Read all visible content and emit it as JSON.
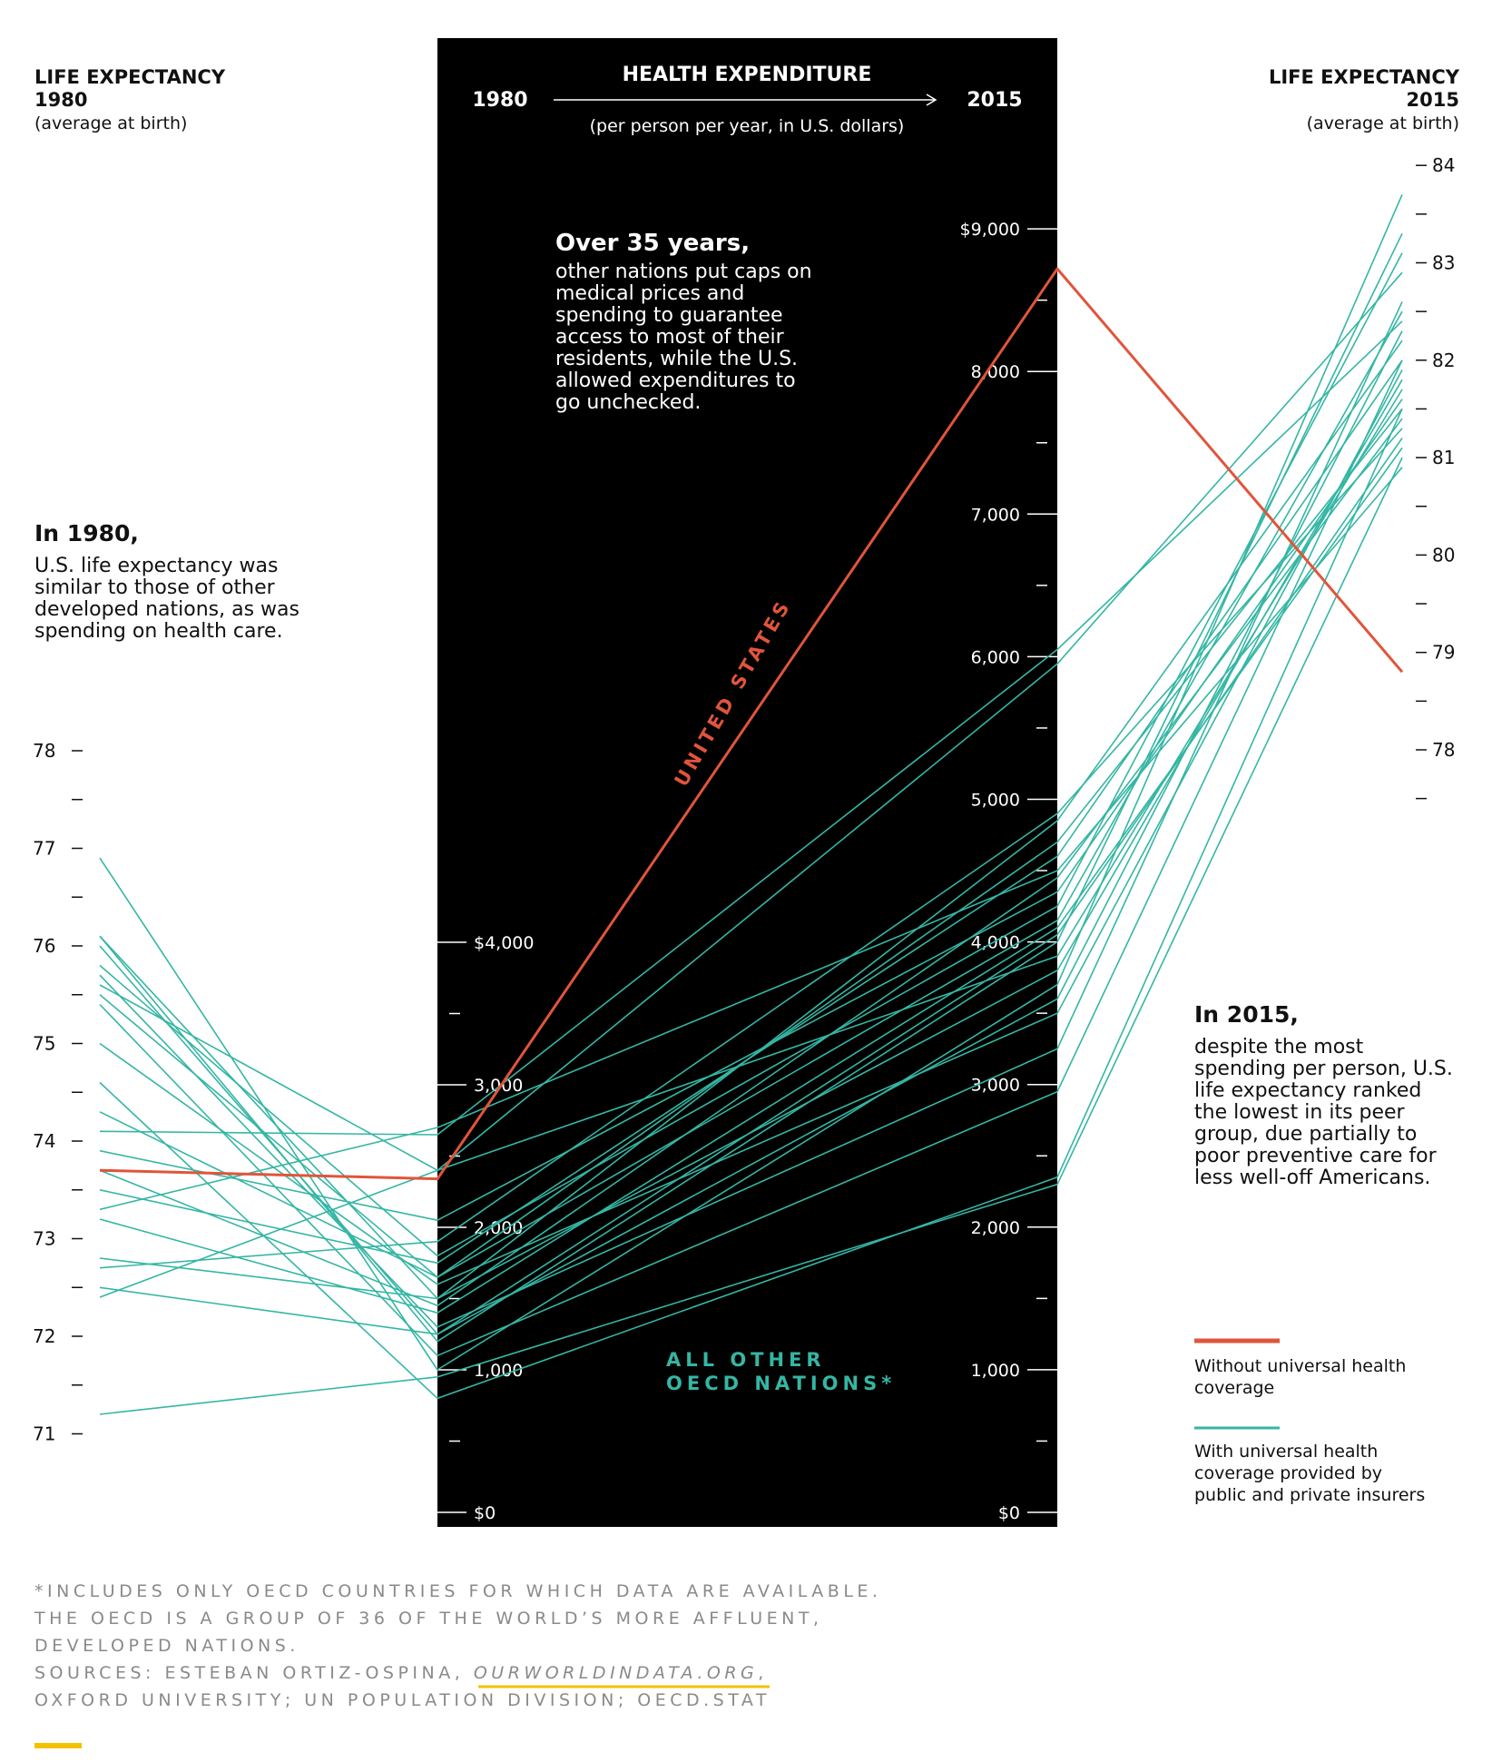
{
  "left_header": {
    "title_line1": "LIFE EXPECTANCY",
    "title_line2": "1980",
    "subtitle": "(average at birth)"
  },
  "right_header": {
    "title_line1": "LIFE EXPECTANCY",
    "title_line2": "2015",
    "subtitle": "(average at birth)"
  },
  "middle_header": {
    "year_start": "1980",
    "title": "HEALTH EXPENDITURE",
    "year_end": "2015",
    "subtitle": "(per person per year, in U.S. dollars)"
  },
  "annotation_35": {
    "lead": "Over 35 years,",
    "lines": [
      "other nations put caps on",
      "medical prices and",
      "spending to guarantee",
      "access to most of their",
      "residents, while the U.S.",
      "allowed expenditures to",
      "go unchecked."
    ]
  },
  "annotation_1980": {
    "lead": "In 1980,",
    "lines": [
      "U.S. life expectancy was",
      "similar to those of other",
      "developed nations, as was",
      "spending on health care."
    ]
  },
  "annotation_2015": {
    "lead": "In 2015,",
    "lines": [
      "despite the most",
      "spending per person, U.S.",
      "life expectancy ranked",
      "the lowest in its peer",
      "group, due partially to",
      "poor preventive care for",
      "less well-off Americans."
    ]
  },
  "series_labels": {
    "us": "UNITED STATES",
    "oecd_line1": "ALL OTHER",
    "oecd_line2": "OECD NATIONS*"
  },
  "legend": {
    "without": {
      "lines": [
        "Without universal health",
        "coverage"
      ],
      "color": "#e0553b"
    },
    "with": {
      "lines": [
        "With universal health",
        "coverage provided by",
        "public and private insurers"
      ],
      "color": "#35b6a4"
    }
  },
  "footnote": {
    "lines": [
      "*INCLUDES ONLY OECD COUNTRIES FOR WHICH DATA ARE AVAILABLE.",
      "THE OECD IS A GROUP OF 36 OF THE WORLD’S MORE AFFLUENT,",
      "DEVELOPED NATIONS."
    ],
    "sources_prefix": "SOURCES: ESTEBAN ORTIZ-OSPINA, ",
    "sources_link": "OURWORLDINDATA.ORG",
    "sources_suffix": ",",
    "sources_line2": "OXFORD UNIVERSITY; UN POPULATION DIVISION; OECD.STAT"
  },
  "colors": {
    "us": "#e0553b",
    "oecd": "#35b6a4",
    "panel": "#000000",
    "accent": "#f2c200"
  },
  "chart_data": {
    "type": "line",
    "axes": {
      "life_1980": {
        "ticks": [
          {
            "value": 78,
            "label": "78"
          },
          {
            "value": 77,
            "label": "77"
          },
          {
            "value": 76,
            "label": "76"
          },
          {
            "value": 75,
            "label": "75"
          },
          {
            "value": 74,
            "label": "74"
          },
          {
            "value": 73,
            "label": "73"
          },
          {
            "value": 72,
            "label": "72"
          },
          {
            "value": 71,
            "label": "71"
          }
        ]
      },
      "spend_1980": {
        "ticks": [
          {
            "value": 4000,
            "label": "$4,000"
          },
          {
            "value": 3000,
            "label": "3,000"
          },
          {
            "value": 2000,
            "label": "2,000"
          },
          {
            "value": 1000,
            "label": "1,000"
          },
          {
            "value": 0,
            "label": "$0"
          }
        ]
      },
      "spend_2015": {
        "ticks": [
          {
            "value": 9000,
            "label": "$9,000"
          },
          {
            "value": 8000,
            "label": "8,000"
          },
          {
            "value": 7000,
            "label": "7,000"
          },
          {
            "value": 6000,
            "label": "6,000"
          },
          {
            "value": 5000,
            "label": "5,000"
          },
          {
            "value": 4000,
            "label": "4,000"
          },
          {
            "value": 3000,
            "label": "3,000"
          },
          {
            "value": 2000,
            "label": "2,000"
          },
          {
            "value": 1000,
            "label": "1,000"
          },
          {
            "value": 0,
            "label": "$0"
          }
        ]
      },
      "life_2015": {
        "ticks": [
          {
            "value": 84,
            "label": "84"
          },
          {
            "value": 83,
            "label": "83"
          },
          {
            "value": 82,
            "label": "82"
          },
          {
            "value": 81,
            "label": "81"
          },
          {
            "value": 80,
            "label": "80"
          },
          {
            "value": 79,
            "label": "79"
          },
          {
            "value": 78,
            "label": "78"
          }
        ]
      }
    },
    "series": [
      {
        "group": "us",
        "life_1980": 73.7,
        "spend_1980": 2340,
        "spend_2015": 8720,
        "life_2015": 78.8
      },
      {
        "group": "oecd",
        "life_1980": 76.9,
        "spend_1980": 1000,
        "spend_2015": 3700,
        "life_2015": 83.7
      },
      {
        "group": "oecd",
        "life_1980": 76.1,
        "spend_1980": 1200,
        "spend_2015": 4000,
        "life_2015": 83.3
      },
      {
        "group": "oecd",
        "life_1980": 76.1,
        "spend_1980": 1500,
        "spend_2015": 4850,
        "life_2015": 82.2
      },
      {
        "group": "oecd",
        "life_1980": 75.8,
        "spend_1980": 1800,
        "spend_2015": 4250,
        "life_2015": 83.1
      },
      {
        "group": "oecd",
        "life_1980": 75.7,
        "spend_1980": 1300,
        "spend_2015": 3250,
        "life_2015": 82.6
      },
      {
        "group": "oecd",
        "life_1980": 75.6,
        "spend_1980": 2400,
        "spend_2015": 5950,
        "life_2015": 82.9
      },
      {
        "group": "oecd",
        "life_1980": 75.5,
        "spend_1980": 1650,
        "spend_2015": 4700,
        "life_2015": 81.5
      },
      {
        "group": "oecd",
        "life_1980": 75.4,
        "spend_1980": 1100,
        "spend_2015": 2950,
        "life_2015": 82.0
      },
      {
        "group": "oecd",
        "life_1980": 74.3,
        "spend_1980": 1650,
        "spend_2015": 4150,
        "life_2015": 82.5
      },
      {
        "group": "oecd",
        "life_1980": 74.1,
        "spend_1980": 2650,
        "spend_2015": 6050,
        "life_2015": 82.4
      },
      {
        "group": "oecd",
        "life_1980": 73.9,
        "spend_1980": 2050,
        "spend_2015": 4350,
        "life_2015": 81.6
      },
      {
        "group": "oecd",
        "life_1980": 73.7,
        "spend_1980": 1450,
        "spend_2015": 4450,
        "life_2015": 81.4
      },
      {
        "group": "oecd",
        "life_1980": 73.5,
        "spend_1980": 1750,
        "spend_2015": 4600,
        "life_2015": 82.0
      },
      {
        "group": "oecd",
        "life_1980": 73.2,
        "spend_1980": 1400,
        "spend_2015": 4100,
        "life_2015": 81.1
      },
      {
        "group": "oecd",
        "life_1980": 72.8,
        "spend_1980": 1500,
        "spend_2015": 3800,
        "life_2015": 81.8
      },
      {
        "group": "oecd",
        "life_1980": 72.7,
        "spend_1980": 1900,
        "spend_2015": 4900,
        "life_2015": 81.3
      },
      {
        "group": "oecd",
        "life_1980": 72.5,
        "spend_1980": 1250,
        "spend_2015": 4050,
        "life_2015": 81.2
      },
      {
        "group": "oecd",
        "life_1980": 72.4,
        "spend_1980": 2400,
        "spend_2015": 3900,
        "life_2015": 81.7
      },
      {
        "group": "oecd",
        "life_1980": 71.2,
        "spend_1980": 950,
        "spend_2015": 2300,
        "life_2015": 81.0
      },
      {
        "group": "oecd",
        "life_1980": 76.0,
        "spend_1980": 1250,
        "spend_2015": 3600,
        "life_2015": 82.3
      },
      {
        "group": "oecd",
        "life_1980": 74.6,
        "spend_1980": 800,
        "spend_2015": 2350,
        "life_2015": 81.5
      },
      {
        "group": "oecd",
        "life_1980": 73.3,
        "spend_1980": 2700,
        "spend_2015": 4500,
        "life_2015": 80.9
      },
      {
        "group": "oecd",
        "life_1980": 75.0,
        "spend_1980": 1600,
        "spend_2015": 3500,
        "life_2015": 81.9
      }
    ]
  }
}
